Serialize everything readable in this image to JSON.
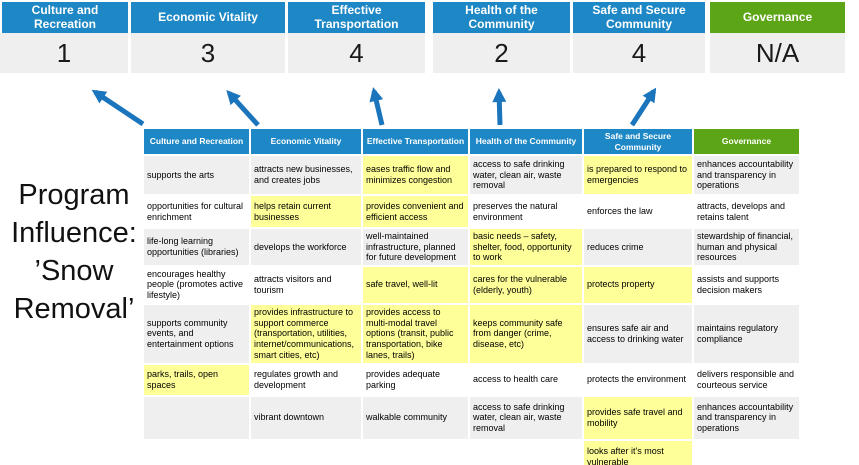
{
  "title_lines": [
    "Program",
    "Influence:",
    "’Snow",
    "Removal’"
  ],
  "colors": {
    "blue": "#1E87C5",
    "green": "#5CA517",
    "yellow": "#FFFF99",
    "zebra_gray": "#EFEFEF",
    "score_bg": "#EFEFEF",
    "arrow_blue": "#1B75BC",
    "white": "#FFFFFF"
  },
  "scoreboard": {
    "columns": [
      {
        "label": "Culture and Recreation",
        "score": "1",
        "theme": "blue"
      },
      {
        "label": "Economic Vitality",
        "score": "3",
        "theme": "blue"
      },
      {
        "label": "Effective Transportation",
        "score": "4",
        "theme": "blue"
      },
      {
        "label": "Health of the Community",
        "score": "2",
        "theme": "blue"
      },
      {
        "label": "Safe and Secure Community",
        "score": "4",
        "theme": "blue"
      },
      {
        "label": "Governance",
        "score": "N/A",
        "theme": "green"
      }
    ]
  },
  "matrix": {
    "headers": [
      {
        "label": "Culture and Recreation",
        "theme": "blue"
      },
      {
        "label": "Economic Vitality",
        "theme": "blue"
      },
      {
        "label": "Effective Transportation",
        "theme": "blue"
      },
      {
        "label": "Health of the Community",
        "theme": "blue"
      },
      {
        "label": "Safe and Secure Community",
        "theme": "blue"
      },
      {
        "label": "Governance",
        "theme": "green"
      }
    ],
    "rows": [
      [
        {
          "text": "supports the arts",
          "highlight": false
        },
        {
          "text": "attracts new businesses, and creates jobs",
          "highlight": false
        },
        {
          "text": "eases traffic flow and minimizes congestion",
          "highlight": true
        },
        {
          "text": "access to safe drinking water, clean air, waste removal",
          "highlight": false
        },
        {
          "text": "is prepared to respond to emergencies",
          "highlight": true
        },
        {
          "text": "enhances accountability and transparency in operations",
          "highlight": false
        }
      ],
      [
        {
          "text": "opportunities for cultural enrichment",
          "highlight": false
        },
        {
          "text": "helps retain current businesses",
          "highlight": true
        },
        {
          "text": "provides convenient and efficient access",
          "highlight": true
        },
        {
          "text": "preserves the natural environment",
          "highlight": false
        },
        {
          "text": "enforces the law",
          "highlight": false
        },
        {
          "text": "attracts, develops and retains talent",
          "highlight": false
        }
      ],
      [
        {
          "text": "life-long learning opportunities (libraries)",
          "highlight": false
        },
        {
          "text": "develops the workforce",
          "highlight": false
        },
        {
          "text": "well-maintained infrastructure, planned for future development",
          "highlight": false
        },
        {
          "text": "basic needs – safety, shelter, food, opportunity to work",
          "highlight": true
        },
        {
          "text": "reduces crime",
          "highlight": false
        },
        {
          "text": "stewardship of financial, human and physical resources",
          "highlight": false
        }
      ],
      [
        {
          "text": "encourages healthy people (promotes active lifestyle)",
          "highlight": false
        },
        {
          "text": "attracts visitors and tourism",
          "highlight": false
        },
        {
          "text": "safe travel, well-lit",
          "highlight": true
        },
        {
          "text": "cares for the vulnerable (elderly, youth)",
          "highlight": true
        },
        {
          "text": "protects property",
          "highlight": true
        },
        {
          "text": "assists and supports decision makers",
          "highlight": false
        }
      ],
      [
        {
          "text": "supports community events, and entertainment options",
          "highlight": false
        },
        {
          "text": "provides infrastructure to support commerce (transportation, utilities, internet/communications, smart cities, etc)",
          "highlight": true
        },
        {
          "text": "provides access to multi-modal travel options (transit, public transportation, bike lanes, trails)",
          "highlight": true
        },
        {
          "text": "keeps community safe from danger (crime, disease, etc)",
          "highlight": true
        },
        {
          "text": "ensures safe air and access to drinking water",
          "highlight": false
        },
        {
          "text": "maintains regulatory compliance",
          "highlight": false
        }
      ],
      [
        {
          "text": "parks, trails, open spaces",
          "highlight": true
        },
        {
          "text": "regulates growth and development",
          "highlight": false
        },
        {
          "text": "provides adequate parking",
          "highlight": false
        },
        {
          "text": "access to health care",
          "highlight": false
        },
        {
          "text": "protects the environment",
          "highlight": false
        },
        {
          "text": "delivers responsible and courteous service",
          "highlight": false
        }
      ],
      [
        {
          "text": "",
          "highlight": false
        },
        {
          "text": "vibrant downtown",
          "highlight": false
        },
        {
          "text": "walkable community",
          "highlight": false
        },
        {
          "text": "access to safe drinking water, clean air, waste removal",
          "highlight": false
        },
        {
          "text": "provides safe travel and mobility",
          "highlight": true
        },
        {
          "text": "enhances accountability and transparency in operations",
          "highlight": false
        }
      ],
      [
        {
          "text": "",
          "highlight": false
        },
        {
          "text": "",
          "highlight": false
        },
        {
          "text": "",
          "highlight": false
        },
        {
          "text": "",
          "highlight": false
        },
        {
          "text": "looks after it's most vulnerable",
          "highlight": true
        },
        {
          "text": "",
          "highlight": false
        }
      ]
    ]
  }
}
